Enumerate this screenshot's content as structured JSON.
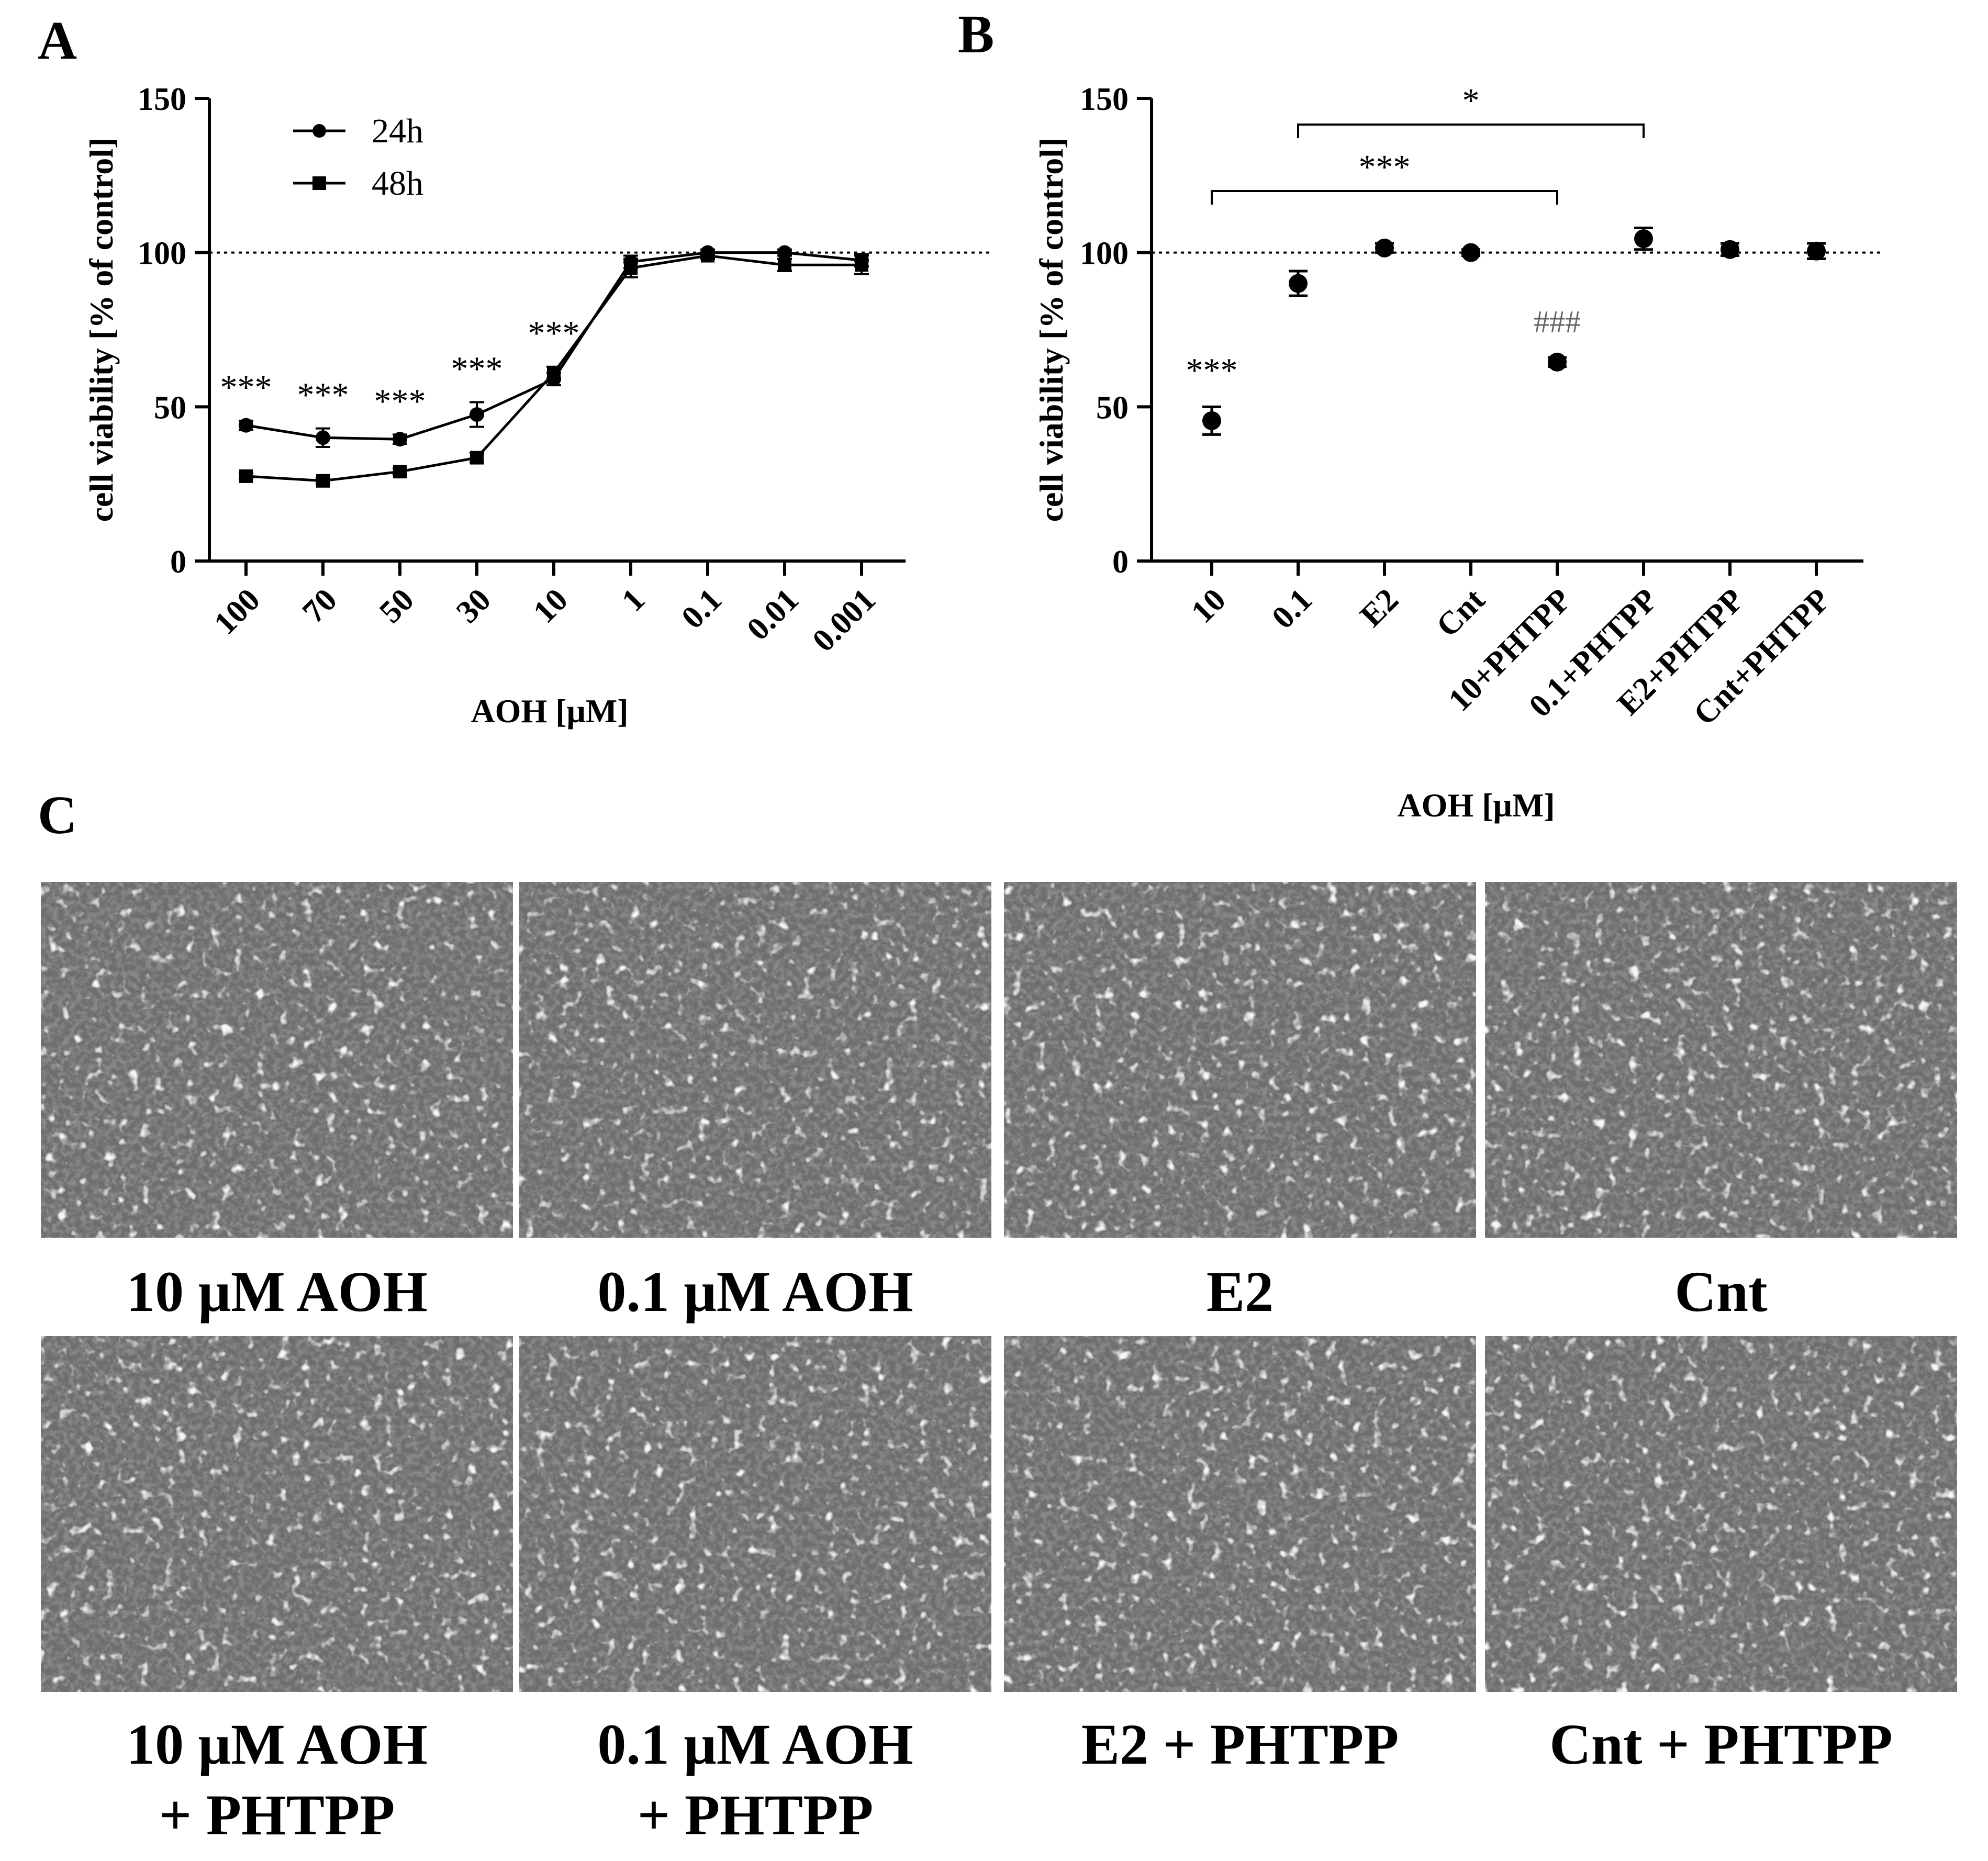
{
  "panels": {
    "A": {
      "letter": "A"
    },
    "B": {
      "letter": "B"
    },
    "C": {
      "letter": "C"
    }
  },
  "chart_data": [
    {
      "panel": "A",
      "type": "line",
      "categories": [
        "100",
        "70",
        "50",
        "30",
        "10",
        "1",
        "0.1",
        "0.01",
        "0.001"
      ],
      "series": [
        {
          "name": "24h",
          "marker": "circle",
          "values": [
            44,
            40,
            39.5,
            47.5,
            59,
            97,
            100,
            100,
            97.5
          ],
          "errors": [
            1.5,
            3,
            1.5,
            4,
            2,
            2,
            1,
            1,
            2
          ]
        },
        {
          "name": "48h",
          "marker": "square",
          "values": [
            27.5,
            26,
            29,
            33.5,
            61,
            95,
            99,
            96,
            96
          ],
          "errors": [
            1,
            1,
            1,
            1.5,
            2,
            3,
            1,
            2,
            3
          ]
        }
      ],
      "significance": [
        "***",
        "***",
        "***",
        "***",
        "***",
        "",
        "",
        "",
        ""
      ],
      "reference_line": 100,
      "xlabel": "AOH [μM]",
      "ylabel": "cell viability [% of control]",
      "ylim": [
        0,
        150
      ],
      "yticks": [
        "0",
        "50",
        "100",
        "150"
      ],
      "legend_position": "top-left"
    },
    {
      "panel": "B",
      "type": "scatter",
      "categories": [
        "10",
        "0.1",
        "E2",
        "Cnt",
        "10+PHTPP",
        "0.1+PHTPP",
        "E2+PHTPP",
        "Cnt+PHTPP"
      ],
      "values": [
        45.5,
        90,
        101.5,
        100,
        64.5,
        104.5,
        101,
        100.5
      ],
      "errors": [
        4.5,
        4,
        1.5,
        1,
        1.5,
        3.5,
        2,
        2.5
      ],
      "annotations": [
        {
          "text": "***",
          "category": "10"
        },
        {
          "text": "###",
          "category": "10+PHTPP"
        }
      ],
      "brackets": [
        {
          "from": "10",
          "to": "10+PHTPP",
          "label": "***"
        },
        {
          "from": "0.1",
          "to": "0.1+PHTPP",
          "label": "*"
        }
      ],
      "reference_line": 100,
      "xlabel": "AOH [μM]",
      "ylabel": "cell viability [% of control]",
      "ylim": [
        0,
        150
      ],
      "yticks": [
        "0",
        "50",
        "100",
        "150"
      ]
    }
  ],
  "micrographs": {
    "row1": [
      "10 μM AOH",
      "0.1 μM AOH",
      "E2",
      "Cnt"
    ],
    "row2": [
      [
        "10 μM AOH",
        "+ PHTPP"
      ],
      [
        "0.1 μM AOH",
        "+ PHTPP"
      ],
      [
        "E2 + PHTPP"
      ],
      [
        "Cnt + PHTPP"
      ]
    ],
    "image_color": "#6e6e6e"
  }
}
